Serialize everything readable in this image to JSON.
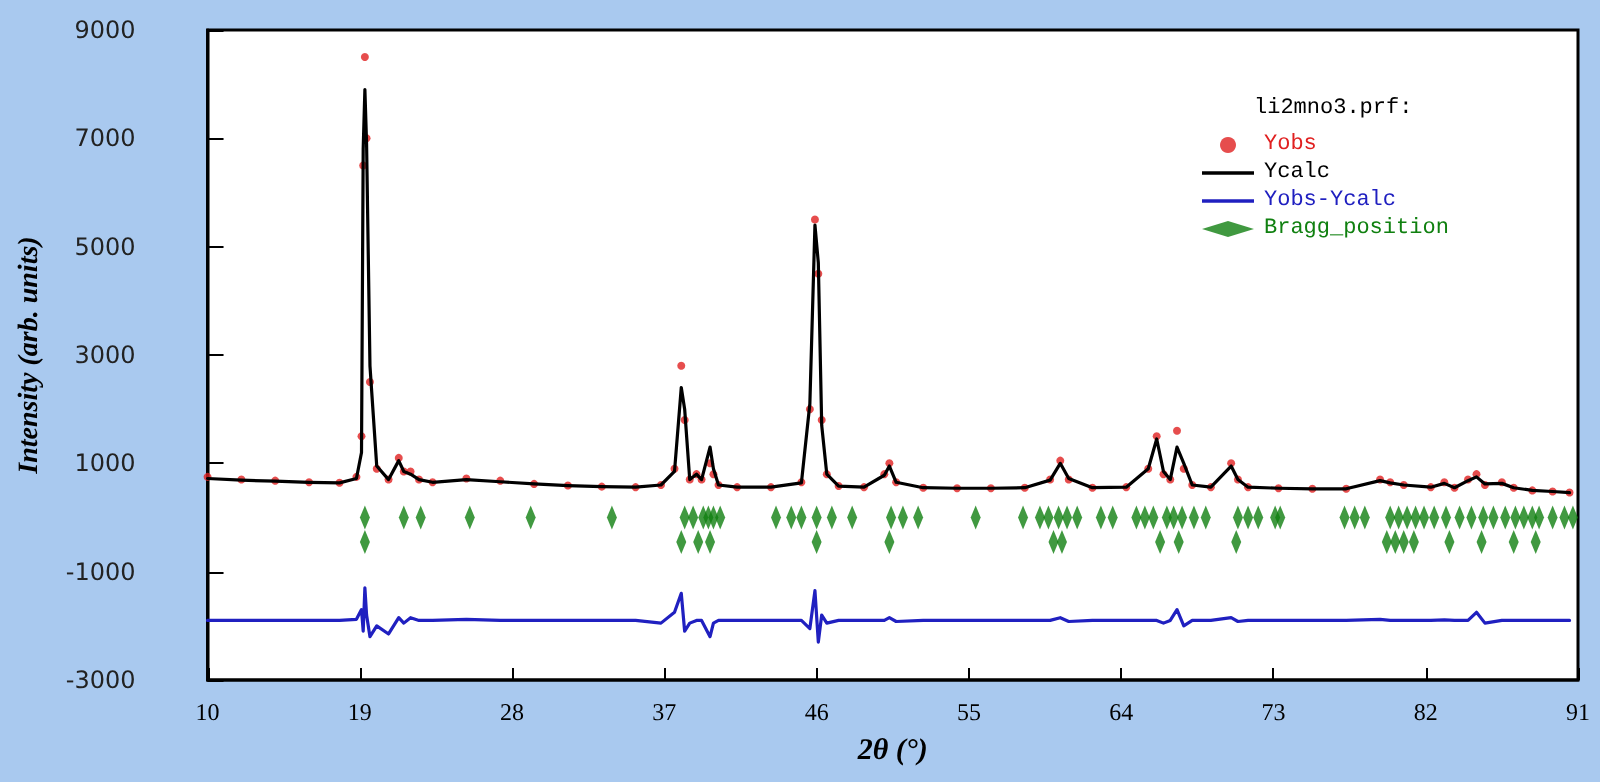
{
  "chart_data": {
    "type": "line",
    "xlabel": "2θ (°)",
    "ylabel": "Intensity (arb. units)",
    "legend_title": "li2mno3.prf:",
    "legend": "top right",
    "grid": false,
    "xlim": [
      10,
      91
    ],
    "xticks": [
      10,
      19,
      28,
      37,
      46,
      55,
      64,
      73,
      82,
      91
    ],
    "ylim": [
      -3000,
      9000
    ],
    "yticks": [
      -3000,
      -1000,
      1000,
      3000,
      5000,
      7000,
      9000
    ],
    "x": [
      10,
      12,
      14,
      16,
      17.8,
      18.8,
      19.1,
      19.2,
      19.3,
      19.4,
      19.6,
      20.0,
      20.7,
      21.3,
      21.6,
      22.0,
      22.5,
      23.3,
      25.3,
      27.3,
      29.3,
      31.3,
      33.3,
      35.3,
      36.8,
      37.6,
      38.0,
      38.2,
      38.5,
      38.9,
      39.2,
      39.7,
      39.9,
      40.2,
      41.3,
      43.3,
      45.1,
      45.6,
      45.9,
      46.1,
      46.3,
      46.6,
      47.3,
      48.8,
      50.0,
      50.3,
      50.7,
      52.3,
      54.3,
      56.3,
      58.3,
      59.8,
      60.4,
      60.9,
      62.3,
      64.3,
      65.6,
      66.1,
      66.5,
      66.9,
      67.3,
      67.7,
      68.2,
      69.3,
      70.5,
      70.9,
      71.5,
      73.3,
      75.3,
      77.3,
      79.3,
      79.9,
      80.7,
      82.3,
      83.1,
      83.7,
      84.5,
      85.0,
      85.5,
      86.5,
      87.2,
      88.3,
      89.5,
      90.5
    ],
    "series": [
      {
        "name": "Yobs",
        "type": "scatter",
        "marker": "circle",
        "color": "#e02020",
        "values": [
          750,
          700,
          680,
          650,
          640,
          750,
          1500,
          6500,
          8500,
          7000,
          2500,
          900,
          700,
          1100,
          850,
          850,
          700,
          650,
          720,
          680,
          620,
          590,
          570,
          560,
          600,
          900,
          2800,
          1800,
          700,
          800,
          700,
          1000,
          800,
          600,
          560,
          560,
          650,
          2000,
          5500,
          4500,
          1800,
          800,
          580,
          560,
          800,
          1000,
          650,
          550,
          540,
          540,
          550,
          700,
          1050,
          700,
          550,
          560,
          900,
          1500,
          800,
          700,
          1600,
          900,
          600,
          560,
          1000,
          700,
          560,
          540,
          530,
          530,
          700,
          650,
          600,
          560,
          650,
          550,
          700,
          800,
          600,
          650,
          550,
          500,
          480,
          460
        ]
      },
      {
        "name": "Ycalc",
        "marker": "none",
        "color": "#000000",
        "values": [
          720,
          690,
          670,
          650,
          640,
          720,
          1200,
          6800,
          7900,
          6900,
          2800,
          950,
          700,
          1050,
          850,
          800,
          700,
          650,
          700,
          660,
          620,
          590,
          570,
          560,
          600,
          850,
          2400,
          2000,
          700,
          800,
          700,
          1300,
          900,
          600,
          560,
          560,
          640,
          2100,
          5400,
          4700,
          1700,
          800,
          580,
          560,
          780,
          950,
          650,
          550,
          540,
          540,
          550,
          690,
          1000,
          720,
          550,
          560,
          900,
          1450,
          850,
          700,
          1300,
          1000,
          600,
          560,
          950,
          700,
          560,
          540,
          530,
          530,
          680,
          640,
          600,
          560,
          630,
          550,
          680,
          750,
          620,
          630,
          550,
          500,
          480,
          460
        ]
      },
      {
        "name": "Yobs-Ycalc",
        "marker": "none",
        "color": "#2020c0",
        "values": [
          -1900,
          -1900,
          -1900,
          -1900,
          -1900,
          -1880,
          -1700,
          -2100,
          -1300,
          -1800,
          -2200,
          -2000,
          -2150,
          -1850,
          -1950,
          -1850,
          -1900,
          -1900,
          -1880,
          -1900,
          -1900,
          -1900,
          -1900,
          -1900,
          -1950,
          -1750,
          -1400,
          -2100,
          -1950,
          -1900,
          -1900,
          -2200,
          -1950,
          -1900,
          -1900,
          -1900,
          -1900,
          -2050,
          -1350,
          -2300,
          -1800,
          -1950,
          -1900,
          -1900,
          -1900,
          -1850,
          -1920,
          -1900,
          -1900,
          -1900,
          -1900,
          -1900,
          -1850,
          -1920,
          -1900,
          -1900,
          -1900,
          -1900,
          -1950,
          -1900,
          -1700,
          -2000,
          -1900,
          -1900,
          -1850,
          -1920,
          -1900,
          -1900,
          -1900,
          -1900,
          -1880,
          -1900,
          -1900,
          -1900,
          -1890,
          -1900,
          -1900,
          -1750,
          -1950,
          -1900,
          -1900,
          -1900,
          -1900,
          -1900
        ]
      },
      {
        "name": "Bragg_position",
        "type": "scatter",
        "marker": "diamond",
        "color": "#108010",
        "x": [
          19.3,
          21.6,
          22.6,
          25.5,
          29.1,
          33.9,
          38.2,
          38.7,
          39.3,
          39.6,
          39.9,
          40.3,
          43.6,
          44.5,
          45.1,
          46.0,
          46.9,
          48.1,
          50.4,
          51.1,
          52.0,
          55.4,
          58.2,
          59.2,
          59.7,
          60.3,
          60.8,
          61.4,
          62.8,
          63.5,
          64.9,
          65.4,
          65.9,
          66.7,
          67.1,
          67.6,
          68.3,
          69.0,
          70.9,
          71.5,
          72.1,
          73.1,
          73.4,
          77.2,
          77.8,
          78.4,
          79.9,
          80.4,
          80.9,
          81.4,
          81.9,
          82.5,
          83.2,
          84.0,
          84.7,
          85.4,
          86.0,
          86.7,
          87.3,
          87.8,
          88.3,
          88.7,
          89.5,
          90.2,
          90.7,
          19.3,
          38.0,
          39.0,
          39.7,
          46.0,
          50.3,
          60.0,
          60.5,
          66.3,
          67.4,
          70.8,
          79.7,
          80.2,
          80.7,
          81.3,
          83.4,
          85.3,
          87.2,
          88.5
        ],
        "values": [
          0,
          0,
          0,
          0,
          0,
          0,
          0,
          0,
          0,
          0,
          0,
          0,
          0,
          0,
          0,
          0,
          0,
          0,
          0,
          0,
          0,
          0,
          0,
          0,
          0,
          0,
          0,
          0,
          0,
          0,
          0,
          0,
          0,
          0,
          0,
          0,
          0,
          0,
          0,
          0,
          0,
          0,
          0,
          0,
          0,
          0,
          0,
          0,
          0,
          0,
          0,
          0,
          0,
          0,
          0,
          0,
          0,
          0,
          0,
          0,
          0,
          0,
          0,
          0,
          0,
          -450,
          -450,
          -450,
          -450,
          -450,
          -450,
          -450,
          -450,
          -450,
          -450,
          -450,
          -450,
          -450,
          -450,
          -450,
          -450,
          -450,
          -450,
          -450
        ]
      }
    ]
  }
}
